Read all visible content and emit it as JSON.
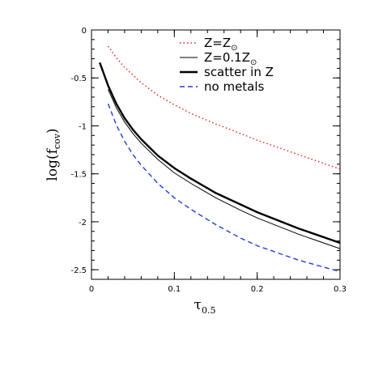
{
  "chart_data": {
    "type": "line",
    "xlabel_main": "τ",
    "xlabel_sub": "0.5",
    "ylabel_main": "log(f",
    "ylabel_sub": "cov",
    "ylabel_close": ")",
    "xlim": [
      0,
      0.3
    ],
    "ylim": [
      -2.6,
      0
    ],
    "x_ticks": [
      {
        "value": 0,
        "label": "0"
      },
      {
        "value": 0.1,
        "label": "0.1"
      },
      {
        "value": 0.2,
        "label": "0.2"
      },
      {
        "value": 0.3,
        "label": "0.3"
      }
    ],
    "y_ticks": [
      {
        "value": 0,
        "label": "0"
      },
      {
        "value": -0.5,
        "label": "-0.5"
      },
      {
        "value": -1,
        "label": "-1"
      },
      {
        "value": -1.5,
        "label": "-1.5"
      },
      {
        "value": -2,
        "label": "-2"
      },
      {
        "value": -2.5,
        "label": "-2.5"
      }
    ],
    "x_minor_step": 0.02,
    "y_minor_step": 0.1,
    "legend_position": "top-right",
    "series": [
      {
        "legend_main": "Z=Z",
        "legend_sub": "⊙",
        "color": "#e0201a",
        "style": "dotted",
        "width": 1.4,
        "x": [
          0.02,
          0.03,
          0.04,
          0.05,
          0.06,
          0.08,
          0.1,
          0.12,
          0.15,
          0.18,
          0.2,
          0.25,
          0.3
        ],
        "y": [
          -0.17,
          -0.29,
          -0.39,
          -0.47,
          -0.55,
          -0.68,
          -0.78,
          -0.87,
          -0.98,
          -1.08,
          -1.15,
          -1.3,
          -1.45
        ]
      },
      {
        "legend_main": "Z=0.1Z",
        "legend_sub": "⊙",
        "color": "#000000",
        "style": "solid",
        "width": 1.0,
        "x": [
          0.02,
          0.03,
          0.04,
          0.05,
          0.06,
          0.08,
          0.1,
          0.12,
          0.15,
          0.18,
          0.2,
          0.25,
          0.3
        ],
        "y": [
          -0.62,
          -0.81,
          -0.96,
          -1.08,
          -1.18,
          -1.35,
          -1.49,
          -1.6,
          -1.75,
          -1.88,
          -1.96,
          -2.13,
          -2.28
        ]
      },
      {
        "legend_main": "scatter in Z",
        "legend_sub": "",
        "color": "#000000",
        "style": "solid",
        "width": 2.4,
        "x": [
          0.01,
          0.02,
          0.03,
          0.04,
          0.05,
          0.06,
          0.08,
          0.1,
          0.12,
          0.15,
          0.18,
          0.2,
          0.25,
          0.3
        ],
        "y": [
          -0.34,
          -0.58,
          -0.77,
          -0.92,
          -1.04,
          -1.14,
          -1.31,
          -1.44,
          -1.55,
          -1.7,
          -1.82,
          -1.9,
          -2.07,
          -2.22
        ]
      },
      {
        "legend_main": "no metals",
        "legend_sub": "",
        "color": "#1f3fd6",
        "style": "dashed",
        "width": 1.4,
        "x": [
          0.02,
          0.03,
          0.04,
          0.05,
          0.06,
          0.08,
          0.1,
          0.12,
          0.15,
          0.18,
          0.2,
          0.25,
          0.3
        ],
        "y": [
          -0.77,
          -0.99,
          -1.16,
          -1.3,
          -1.41,
          -1.6,
          -1.75,
          -1.87,
          -2.03,
          -2.17,
          -2.25,
          -2.4,
          -2.52
        ]
      }
    ]
  }
}
